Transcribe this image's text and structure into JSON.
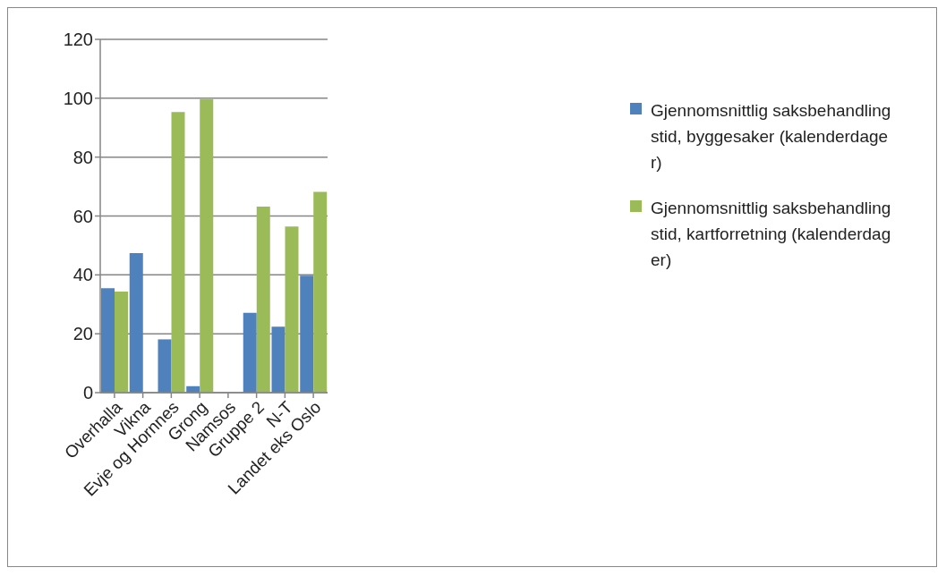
{
  "chart_data": {
    "type": "bar",
    "categories": [
      "Overhalla",
      "Vikna",
      "Evje og Hornnes",
      "Grong",
      "Namsos",
      "Gruppe 2",
      "N-T",
      "Landet eks Oslo"
    ],
    "series": [
      {
        "name": "Gjennomsnittlig saksbehandlingstid, byggesaker (kalenderdager)",
        "color": "#4f81bd",
        "values": [
          35.5,
          47.4,
          18.1,
          2.2,
          null,
          27.1,
          22.4,
          39.7
        ]
      },
      {
        "name": "Gjennomsnittlig saksbehandlingstid, kartforretning (kalenderdager)",
        "color": "#9bbb59",
        "values": [
          34.3,
          null,
          95.3,
          99.7,
          null,
          63.2,
          56.4,
          68.2
        ]
      }
    ],
    "ylim": [
      0,
      120
    ],
    "yticks": [
      0,
      20,
      40,
      60,
      80,
      100,
      120
    ],
    "grid": "y",
    "legend": "right"
  }
}
